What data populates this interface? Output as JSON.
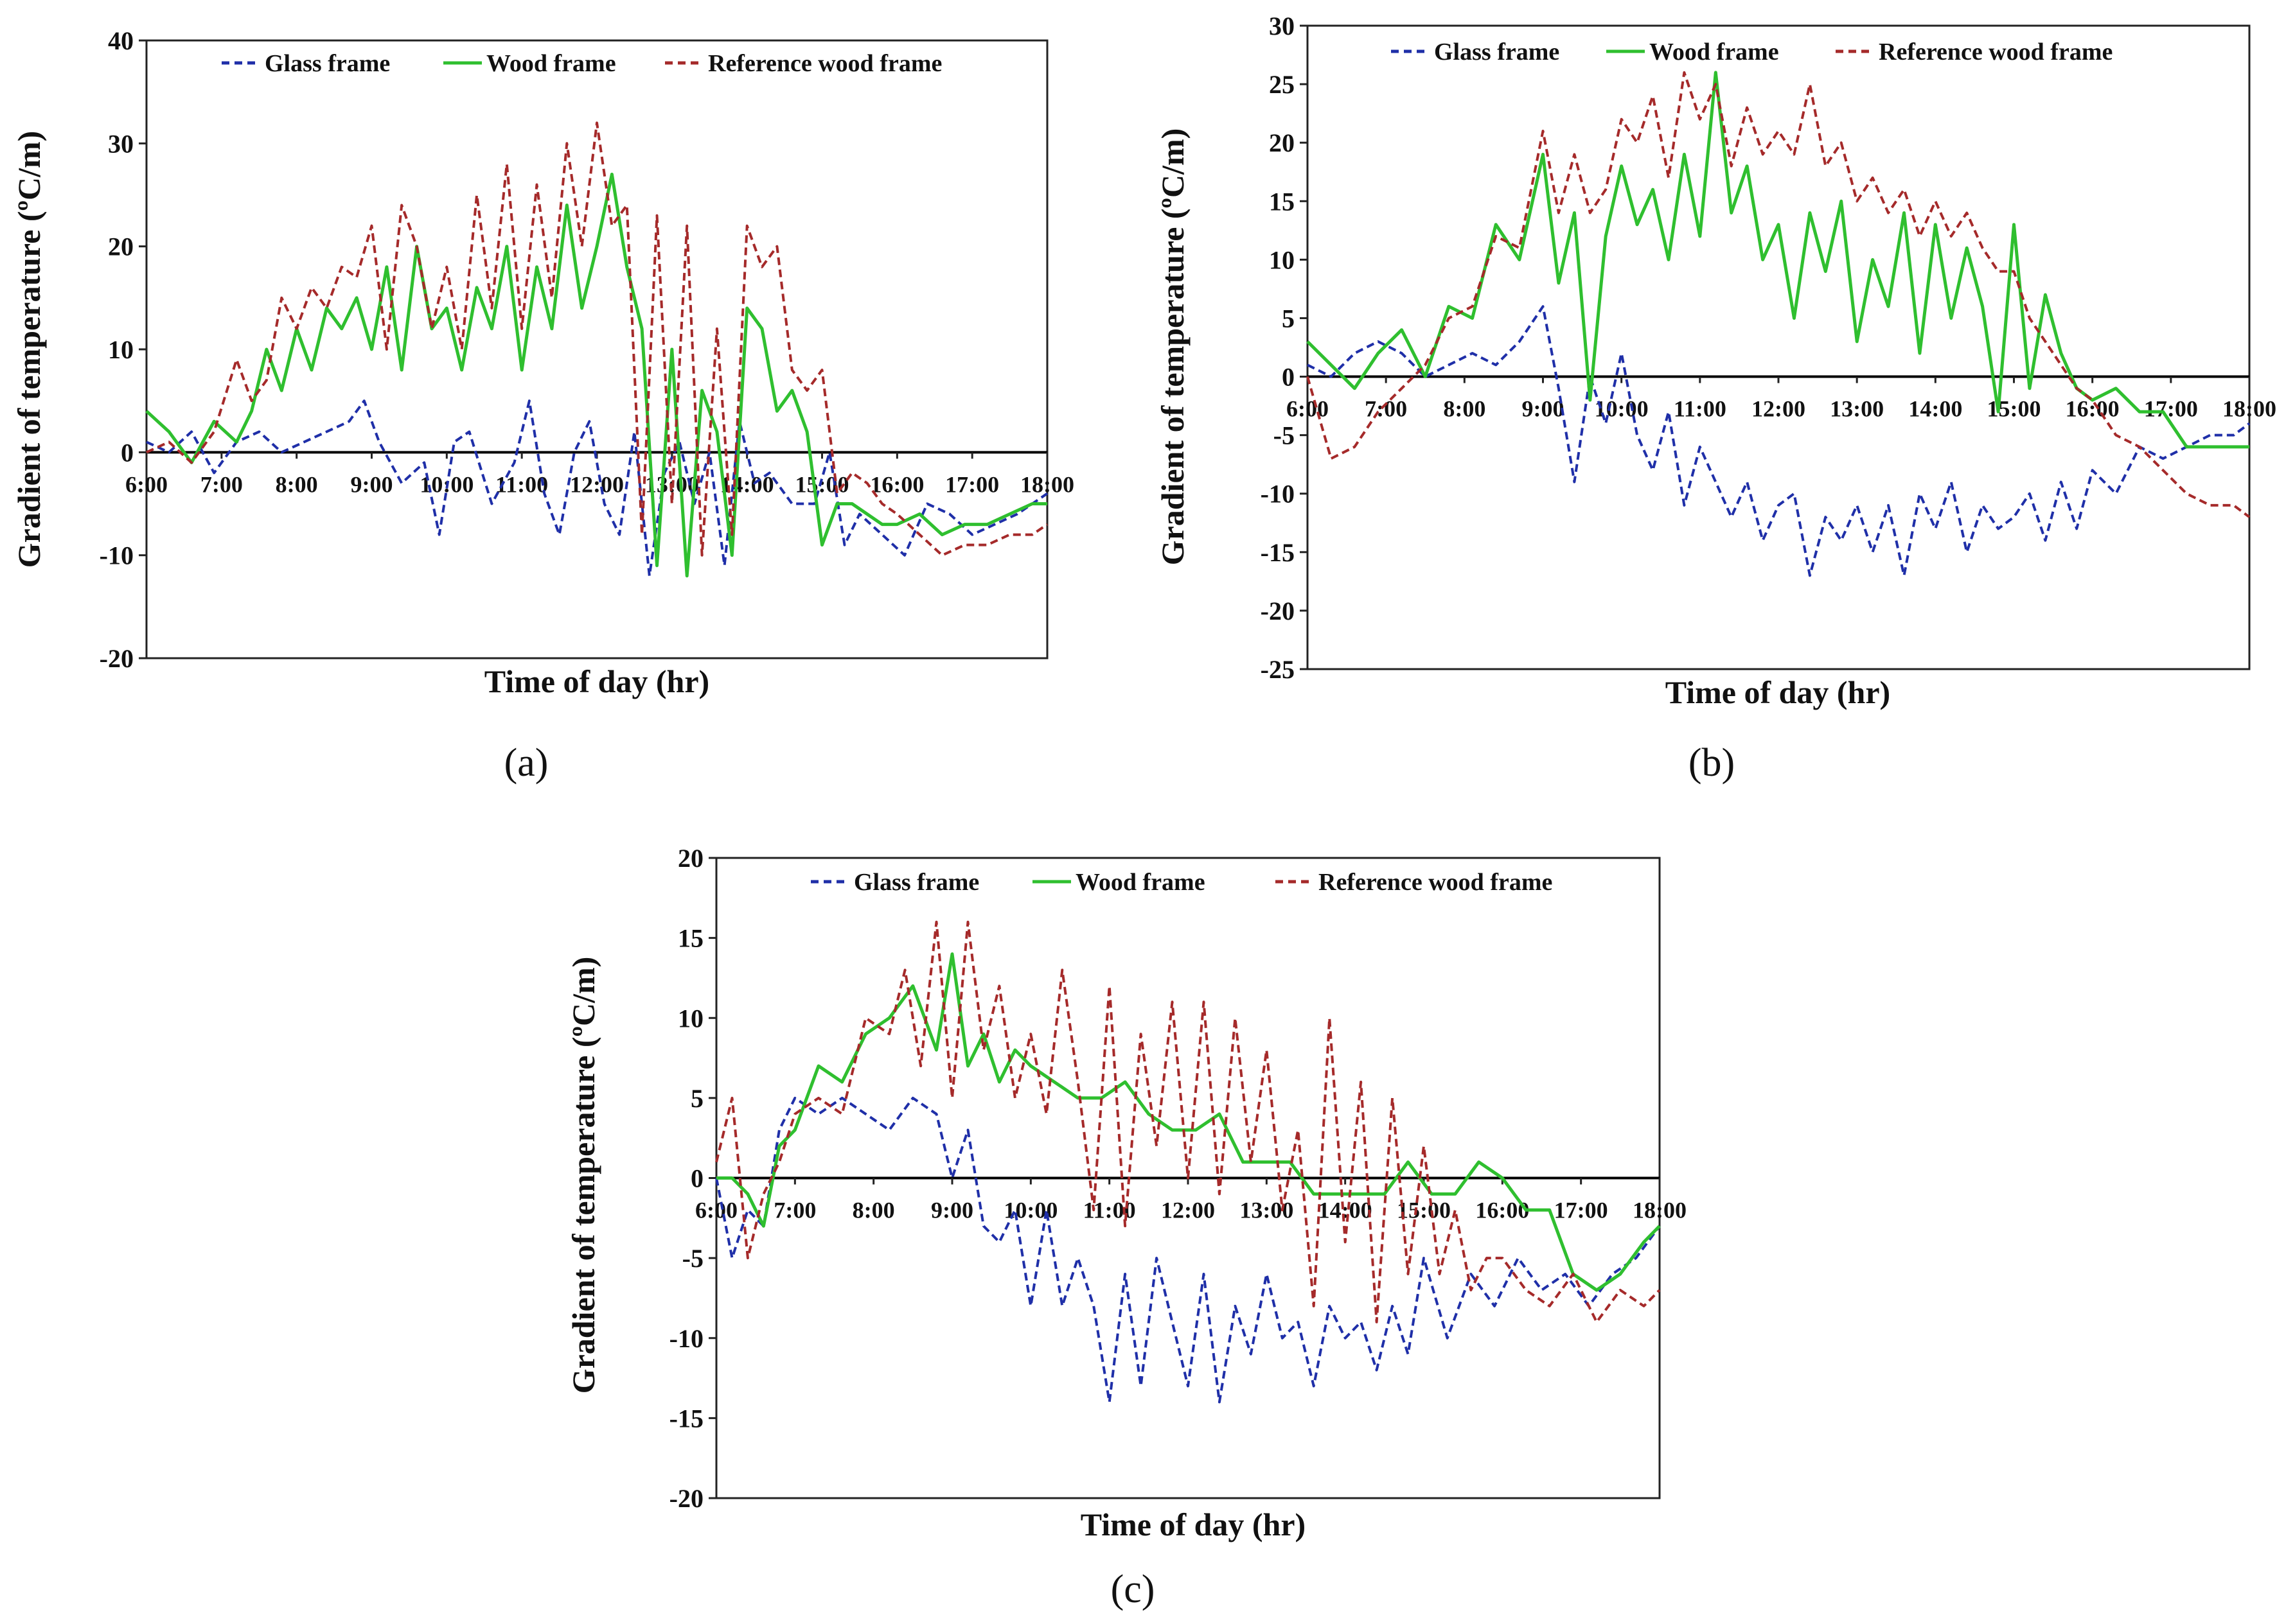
{
  "figure": {
    "panel_labels": [
      "(a)",
      "(b)",
      "(c)"
    ]
  },
  "chart_data": [
    {
      "id": "a",
      "type": "line",
      "title": "",
      "panel_label": "a",
      "xlabel": "Time of day (hr)",
      "ylabel": "Gradient of temperature (ºC/m)",
      "xlim": [
        6,
        18
      ],
      "ylim": [
        -20,
        40
      ],
      "ystep": 10,
      "grid": false,
      "legend": "top",
      "x_tick_labels": [
        "6:00",
        "7:00",
        "8:00",
        "9:00",
        "10:00",
        "11:00",
        "12:00",
        "13:00",
        "14:00",
        "15:00",
        "16:00",
        "17:00",
        "18:00"
      ],
      "y_tick_labels": [
        "-20",
        "-10",
        "0",
        "10",
        "20",
        "30",
        "40"
      ],
      "series": [
        {
          "name": "Glass frame",
          "color": "#1f2fa8",
          "dash": "dashed",
          "x": [
            6,
            6.3,
            6.6,
            6.9,
            7.2,
            7.5,
            7.8,
            8.1,
            8.4,
            8.7,
            8.9,
            9.1,
            9.4,
            9.7,
            9.9,
            10.1,
            10.3,
            10.6,
            10.9,
            11.1,
            11.3,
            11.5,
            11.7,
            11.9,
            12.1,
            12.3,
            12.5,
            12.7,
            12.9,
            13.1,
            13.3,
            13.5,
            13.7,
            13.9,
            14.1,
            14.3,
            14.6,
            14.9,
            15.1,
            15.3,
            15.5,
            15.8,
            16.1,
            16.4,
            16.7,
            17,
            17.3,
            17.6,
            18
          ],
          "y": [
            1,
            0,
            2,
            -2,
            1,
            2,
            0,
            1,
            2,
            3,
            5,
            1,
            -3,
            -1,
            -8,
            1,
            2,
            -5,
            -1,
            5,
            -4,
            -8,
            0,
            3,
            -5,
            -8,
            2,
            -12,
            -2,
            1,
            -5,
            0,
            -11,
            3,
            -3,
            -2,
            -5,
            -5,
            0,
            -9,
            -6,
            -8,
            -10,
            -5,
            -6,
            -8,
            -7,
            -6,
            -4
          ]
        },
        {
          "name": "Wood frame",
          "color": "#2fbf2f",
          "dash": "solid",
          "x": [
            6,
            6.3,
            6.6,
            6.9,
            7.2,
            7.4,
            7.6,
            7.8,
            8,
            8.2,
            8.4,
            8.6,
            8.8,
            9,
            9.2,
            9.4,
            9.6,
            9.8,
            10,
            10.2,
            10.4,
            10.6,
            10.8,
            11,
            11.2,
            11.4,
            11.6,
            11.8,
            12,
            12.2,
            12.4,
            12.6,
            12.8,
            13,
            13.2,
            13.4,
            13.6,
            13.8,
            14,
            14.2,
            14.4,
            14.6,
            14.8,
            15,
            15.2,
            15.4,
            15.6,
            15.8,
            16,
            16.3,
            16.6,
            16.9,
            17.2,
            17.5,
            17.8,
            18
          ],
          "y": [
            4,
            2,
            -1,
            3,
            1,
            4,
            10,
            6,
            12,
            8,
            14,
            12,
            15,
            10,
            18,
            8,
            20,
            12,
            14,
            8,
            16,
            12,
            20,
            8,
            18,
            12,
            24,
            14,
            20,
            27,
            18,
            12,
            -11,
            10,
            -12,
            6,
            2,
            -10,
            14,
            12,
            4,
            6,
            2,
            -9,
            -5,
            -5,
            -6,
            -7,
            -7,
            -6,
            -8,
            -7,
            -7,
            -6,
            -5,
            -5
          ]
        },
        {
          "name": "Reference wood frame",
          "color": "#a52a2a",
          "dash": "dashed",
          "x": [
            6,
            6.3,
            6.6,
            6.9,
            7.2,
            7.4,
            7.6,
            7.8,
            8,
            8.2,
            8.4,
            8.6,
            8.8,
            9,
            9.2,
            9.4,
            9.6,
            9.8,
            10,
            10.2,
            10.4,
            10.6,
            10.8,
            11,
            11.2,
            11.4,
            11.6,
            11.8,
            12,
            12.2,
            12.4,
            12.6,
            12.8,
            13,
            13.2,
            13.4,
            13.6,
            13.8,
            14,
            14.2,
            14.4,
            14.6,
            14.8,
            15,
            15.2,
            15.4,
            15.6,
            15.8,
            16,
            16.3,
            16.6,
            16.9,
            17.2,
            17.5,
            17.8,
            18
          ],
          "y": [
            0,
            1,
            -1,
            2,
            9,
            5,
            7,
            15,
            12,
            16,
            14,
            18,
            17,
            22,
            10,
            24,
            20,
            12,
            18,
            10,
            25,
            14,
            28,
            12,
            26,
            15,
            30,
            20,
            32,
            22,
            24,
            -8,
            23,
            -5,
            22,
            -10,
            12,
            -8,
            22,
            18,
            20,
            8,
            6,
            8,
            -4,
            -2,
            -3,
            -5,
            -6,
            -8,
            -10,
            -9,
            -9,
            -8,
            -8,
            -7
          ]
        }
      ]
    },
    {
      "id": "b",
      "type": "line",
      "title": "",
      "panel_label": "b",
      "xlabel": "Time of day (hr)",
      "ylabel": "Gradient of temperature (ºC/m)",
      "xlim": [
        6,
        18
      ],
      "ylim": [
        -25,
        30
      ],
      "ystep": 5,
      "grid": false,
      "legend": "top",
      "x_tick_labels": [
        "6:00",
        "7:00",
        "8:00",
        "9:00",
        "10:00",
        "11:00",
        "12:00",
        "13:00",
        "14:00",
        "15:00",
        "16:00",
        "17:00",
        "18:00"
      ],
      "y_tick_labels": [
        "-25",
        "-20",
        "-15",
        "-10",
        "-5",
        "0",
        "5",
        "10",
        "15",
        "20",
        "25",
        "30"
      ],
      "series": [
        {
          "name": "Glass frame",
          "color": "#1f2fa8",
          "dash": "dashed",
          "x": [
            6,
            6.3,
            6.6,
            6.9,
            7.2,
            7.5,
            7.8,
            8.1,
            8.4,
            8.7,
            9,
            9.2,
            9.4,
            9.6,
            9.8,
            10,
            10.2,
            10.4,
            10.6,
            10.8,
            11,
            11.2,
            11.4,
            11.6,
            11.8,
            12,
            12.2,
            12.4,
            12.6,
            12.8,
            13,
            13.2,
            13.4,
            13.6,
            13.8,
            14,
            14.2,
            14.4,
            14.6,
            14.8,
            15,
            15.2,
            15.4,
            15.6,
            15.8,
            16,
            16.3,
            16.6,
            16.9,
            17.2,
            17.5,
            17.8,
            18
          ],
          "y": [
            1,
            0,
            2,
            3,
            2,
            0,
            1,
            2,
            1,
            3,
            6,
            -1,
            -9,
            0,
            -4,
            2,
            -5,
            -8,
            -3,
            -11,
            -6,
            -9,
            -12,
            -9,
            -14,
            -11,
            -10,
            -17,
            -12,
            -14,
            -11,
            -15,
            -11,
            -17,
            -10,
            -13,
            -9,
            -15,
            -11,
            -13,
            -12,
            -10,
            -14,
            -9,
            -13,
            -8,
            -10,
            -6,
            -7,
            -6,
            -5,
            -5,
            -4
          ]
        },
        {
          "name": "Wood frame",
          "color": "#2fbf2f",
          "dash": "solid",
          "x": [
            6,
            6.3,
            6.6,
            6.9,
            7.2,
            7.5,
            7.8,
            8.1,
            8.4,
            8.7,
            9,
            9.2,
            9.4,
            9.6,
            9.8,
            10,
            10.2,
            10.4,
            10.6,
            10.8,
            11,
            11.2,
            11.4,
            11.6,
            11.8,
            12,
            12.2,
            12.4,
            12.6,
            12.8,
            13,
            13.2,
            13.4,
            13.6,
            13.8,
            14,
            14.2,
            14.4,
            14.6,
            14.8,
            15,
            15.2,
            15.4,
            15.6,
            15.8,
            16,
            16.3,
            16.6,
            16.9,
            17.2,
            17.5,
            17.8,
            18
          ],
          "y": [
            3,
            1,
            -1,
            2,
            4,
            0,
            6,
            5,
            13,
            10,
            19,
            8,
            14,
            -2,
            12,
            18,
            13,
            16,
            10,
            19,
            12,
            26,
            14,
            18,
            10,
            13,
            5,
            14,
            9,
            15,
            3,
            10,
            6,
            14,
            2,
            13,
            5,
            11,
            6,
            -3,
            13,
            -1,
            7,
            2,
            -1,
            -2,
            -1,
            -3,
            -3,
            -6,
            -6,
            -6,
            -6
          ]
        },
        {
          "name": "Reference wood frame",
          "color": "#a52a2a",
          "dash": "dashed",
          "x": [
            6,
            6.3,
            6.6,
            6.9,
            7.2,
            7.5,
            7.8,
            8.1,
            8.4,
            8.7,
            9,
            9.2,
            9.4,
            9.6,
            9.8,
            10,
            10.2,
            10.4,
            10.6,
            10.8,
            11,
            11.2,
            11.4,
            11.6,
            11.8,
            12,
            12.2,
            12.4,
            12.6,
            12.8,
            13,
            13.2,
            13.4,
            13.6,
            13.8,
            14,
            14.2,
            14.4,
            14.6,
            14.8,
            15,
            15.2,
            15.4,
            15.6,
            15.8,
            16,
            16.3,
            16.6,
            16.9,
            17.2,
            17.5,
            17.8,
            18
          ],
          "y": [
            0,
            -7,
            -6,
            -3,
            -1,
            1,
            5,
            6,
            12,
            11,
            21,
            14,
            19,
            14,
            16,
            22,
            20,
            24,
            17,
            26,
            22,
            25,
            18,
            23,
            19,
            21,
            19,
            25,
            18,
            20,
            15,
            17,
            14,
            16,
            12,
            15,
            12,
            14,
            11,
            9,
            9,
            5,
            3,
            1,
            -1,
            -2,
            -5,
            -6,
            -8,
            -10,
            -11,
            -11,
            -12
          ]
        }
      ]
    },
    {
      "id": "c",
      "type": "line",
      "title": "",
      "panel_label": "c",
      "xlabel": "Time of day (hr)",
      "ylabel": "Gradient of temperature (ºC/m)",
      "xlim": [
        6,
        18
      ],
      "ylim": [
        -20,
        20
      ],
      "ystep": 5,
      "grid": false,
      "legend": "top",
      "x_tick_labels": [
        "6:00",
        "7:00",
        "8:00",
        "9:00",
        "10:00",
        "11:00",
        "12:00",
        "13:00",
        "14:00",
        "15:00",
        "16:00",
        "17:00",
        "18:00"
      ],
      "y_tick_labels": [
        "-20",
        "-15",
        "-10",
        "-5",
        "0",
        "5",
        "10",
        "15",
        "20"
      ],
      "series": [
        {
          "name": "Glass frame",
          "color": "#1f2fa8",
          "dash": "dashed",
          "x": [
            6,
            6.2,
            6.4,
            6.6,
            6.8,
            7,
            7.3,
            7.6,
            7.9,
            8.2,
            8.5,
            8.8,
            9,
            9.2,
            9.4,
            9.6,
            9.8,
            10,
            10.2,
            10.4,
            10.6,
            10.8,
            11,
            11.2,
            11.4,
            11.6,
            11.8,
            12,
            12.2,
            12.4,
            12.6,
            12.8,
            13,
            13.2,
            13.4,
            13.6,
            13.8,
            14,
            14.2,
            14.4,
            14.6,
            14.8,
            15,
            15.3,
            15.6,
            15.9,
            16.2,
            16.5,
            16.8,
            17.1,
            17.4,
            17.7,
            18
          ],
          "y": [
            0,
            -5,
            -2,
            -3,
            3,
            5,
            4,
            5,
            4,
            3,
            5,
            4,
            0,
            3,
            -3,
            -4,
            -2,
            -8,
            -2,
            -8,
            -5,
            -8,
            -14,
            -6,
            -13,
            -5,
            -9,
            -13,
            -6,
            -14,
            -8,
            -11,
            -6,
            -10,
            -9,
            -13,
            -8,
            -10,
            -9,
            -12,
            -8,
            -11,
            -5,
            -10,
            -6,
            -8,
            -5,
            -7,
            -6,
            -8,
            -6,
            -5,
            -3
          ]
        },
        {
          "name": "Wood frame",
          "color": "#2fbf2f",
          "dash": "solid",
          "x": [
            6,
            6.2,
            6.4,
            6.6,
            6.8,
            7,
            7.3,
            7.6,
            7.9,
            8.2,
            8.5,
            8.8,
            9,
            9.2,
            9.4,
            9.6,
            9.8,
            10,
            10.3,
            10.6,
            10.9,
            11.2,
            11.5,
            11.8,
            12.1,
            12.4,
            12.7,
            13,
            13.3,
            13.6,
            13.9,
            14.2,
            14.5,
            14.8,
            15.1,
            15.4,
            15.7,
            16,
            16.3,
            16.6,
            16.9,
            17.2,
            17.5,
            17.8,
            18
          ],
          "y": [
            0,
            0,
            -1,
            -3,
            2,
            3,
            7,
            6,
            9,
            10,
            12,
            8,
            14,
            7,
            9,
            6,
            8,
            7,
            6,
            5,
            5,
            6,
            4,
            3,
            3,
            4,
            1,
            1,
            1,
            -1,
            -1,
            -1,
            -1,
            1,
            -1,
            -1,
            1,
            0,
            -2,
            -2,
            -6,
            -7,
            -6,
            -4,
            -3
          ]
        },
        {
          "name": "Reference wood frame",
          "color": "#a52a2a",
          "dash": "dashed",
          "x": [
            6,
            6.2,
            6.4,
            6.6,
            6.8,
            7,
            7.3,
            7.6,
            7.9,
            8.2,
            8.4,
            8.6,
            8.8,
            9,
            9.2,
            9.4,
            9.6,
            9.8,
            10,
            10.2,
            10.4,
            10.6,
            10.8,
            11,
            11.2,
            11.4,
            11.6,
            11.8,
            12,
            12.2,
            12.4,
            12.6,
            12.8,
            13,
            13.2,
            13.4,
            13.6,
            13.8,
            14,
            14.2,
            14.4,
            14.6,
            14.8,
            15,
            15.2,
            15.4,
            15.6,
            15.8,
            16,
            16.3,
            16.6,
            16.9,
            17.2,
            17.5,
            17.8,
            18
          ],
          "y": [
            1,
            5,
            -5,
            -1,
            1,
            4,
            5,
            4,
            10,
            9,
            13,
            7,
            16,
            5,
            16,
            8,
            12,
            5,
            9,
            4,
            13,
            6,
            -2,
            12,
            -3,
            9,
            2,
            11,
            0,
            11,
            -1,
            10,
            1,
            8,
            -2,
            3,
            -8,
            10,
            -4,
            6,
            -9,
            5,
            -6,
            2,
            -6,
            -2,
            -7,
            -5,
            -5,
            -7,
            -8,
            -6,
            -9,
            -7,
            -8,
            -7
          ]
        }
      ]
    }
  ]
}
